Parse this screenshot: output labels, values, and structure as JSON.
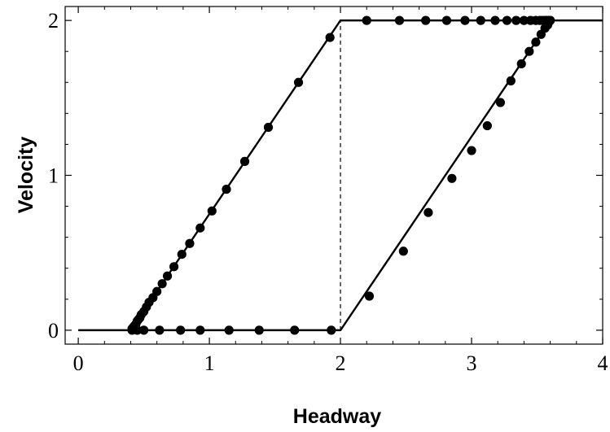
{
  "chart_data": {
    "type": "line",
    "title": "",
    "xlabel": "Headway",
    "ylabel": "Velocity",
    "xlim": [
      -0.1,
      4.0
    ],
    "ylim": [
      -0.09,
      2.09
    ],
    "x_ticks": [
      "0",
      "1",
      "2",
      "3",
      "4"
    ],
    "y_ticks": [
      "0",
      "1",
      "2"
    ],
    "grid": false,
    "legend": "none",
    "colors": {
      "line": "#000000",
      "points": "#000000",
      "background": "#ffffff"
    },
    "series": [
      {
        "style": "solid",
        "x": [
          0.0,
          0.4,
          2.0,
          4.0
        ],
        "y": [
          0.0,
          0.0,
          2.0,
          2.0
        ]
      },
      {
        "style": "solid",
        "x": [
          0.4,
          2.0,
          3.6
        ],
        "y": [
          0.0,
          0.0,
          2.0
        ]
      },
      {
        "style": "dashed",
        "x": [
          2.0,
          2.0
        ],
        "y": [
          0.0,
          2.0
        ]
      },
      {
        "style": "markers",
        "x": [
          0.41,
          0.42,
          0.43,
          0.44,
          0.45,
          0.46,
          0.47,
          0.48,
          0.5,
          0.52,
          0.54,
          0.57,
          0.6,
          0.64,
          0.68,
          0.73,
          0.79,
          0.85,
          0.93,
          1.02,
          1.13,
          1.27,
          1.45,
          1.68,
          1.92,
          0.41,
          0.45,
          0.5,
          0.62,
          0.78,
          0.93,
          1.15,
          1.38,
          1.65,
          1.93,
          2.2,
          2.45,
          2.65,
          2.81,
          2.95,
          3.07,
          3.18,
          3.27,
          3.34,
          3.4,
          3.45,
          3.49,
          3.52,
          3.54,
          3.56,
          3.57,
          3.58,
          3.59,
          3.6,
          2.22,
          2.48,
          2.67,
          2.85,
          3.0,
          3.12,
          3.22,
          3.3,
          3.38,
          3.44,
          3.49,
          3.53,
          3.56,
          3.58,
          3.59,
          3.6
        ],
        "y": [
          0.01,
          0.02,
          0.03,
          0.04,
          0.06,
          0.07,
          0.08,
          0.1,
          0.12,
          0.15,
          0.18,
          0.21,
          0.25,
          0.3,
          0.35,
          0.41,
          0.49,
          0.56,
          0.66,
          0.77,
          0.91,
          1.09,
          1.31,
          1.6,
          1.89,
          0.0,
          0.0,
          0.0,
          0.0,
          0.0,
          0.0,
          0.0,
          0.0,
          0.0,
          0.0,
          2.0,
          2.0,
          2.0,
          2.0,
          2.0,
          2.0,
          2.0,
          2.0,
          2.0,
          2.0,
          2.0,
          2.0,
          2.0,
          2.0,
          2.0,
          2.0,
          2.0,
          2.0,
          2.0,
          0.22,
          0.51,
          0.76,
          0.98,
          1.16,
          1.32,
          1.47,
          1.61,
          1.72,
          1.8,
          1.86,
          1.91,
          1.95,
          1.97,
          1.99,
          2.0
        ]
      }
    ]
  }
}
